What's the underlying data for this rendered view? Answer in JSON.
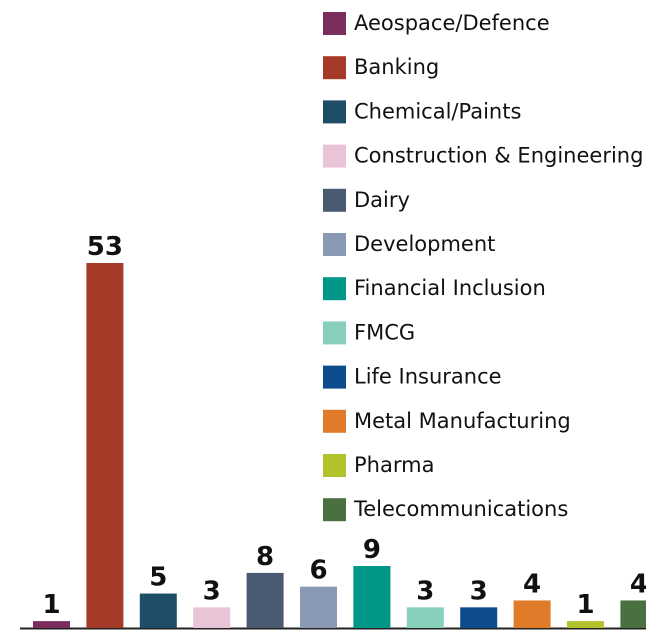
{
  "chart_data": {
    "type": "bar",
    "categories": [
      "Aeospace/Defence",
      "Banking",
      "Chemical/Paints",
      "Construction & Engineering",
      "Dairy",
      "Development",
      "Financial Inclusion",
      "FMCG",
      "Life Insurance",
      "Metal Manufacturing",
      "Pharma",
      "Telecommunications"
    ],
    "values": [
      1,
      53,
      5,
      3,
      8,
      6,
      9,
      3,
      3,
      4,
      1,
      4
    ],
    "colors": [
      "#7b2d5e",
      "#a63a28",
      "#1e4e67",
      "#e8c4d6",
      "#4a5a70",
      "#8a9ab5",
      "#009688",
      "#88cfbc",
      "#0c4c8c",
      "#e07b2a",
      "#b2c22a",
      "#4a7040"
    ],
    "legend": "top-right"
  }
}
